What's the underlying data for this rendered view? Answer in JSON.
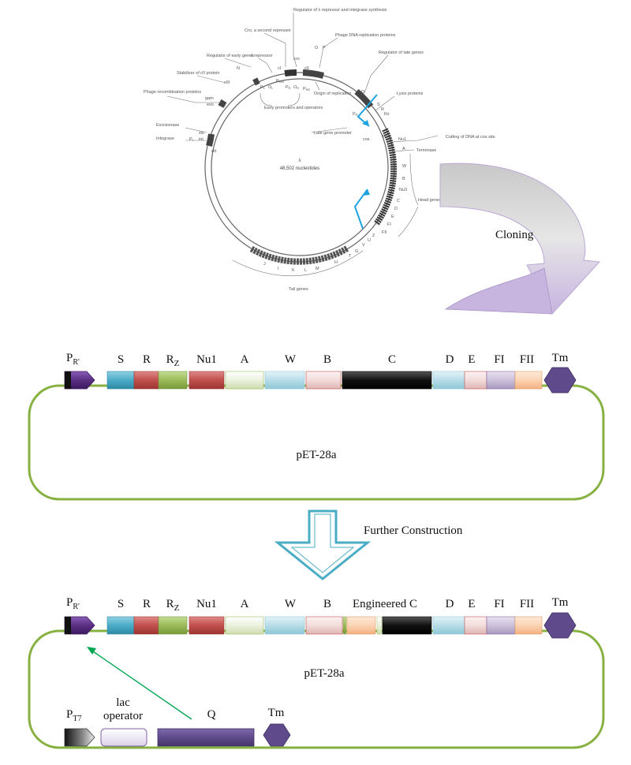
{
  "lambda_map": {
    "center_name": "λ",
    "center_size": "48,502 nucleotides",
    "labels": {
      "regulator_repressor": "Regulator of λ repressor and integrase synthesis",
      "cro": "Cro, a second repressor",
      "phage_dna_rep": "Phage DNA replication proteins",
      "lambda_repressor": "λ repressor",
      "regulator_early": "Regulator of early genes",
      "regulator_late": "Regulator of late genes",
      "stabilizer": "Stabilizer of cII protein",
      "phage_recomb": "Phage recombination proteins",
      "lysis": "Lysis proteins",
      "origin": "Origin of replication",
      "early_promoters": "Early promoters and operators",
      "late_promoter": "Late gene promoter",
      "cutting": "Cutting of DNA at cos site",
      "terminase": "Terminase",
      "head": "Head genes",
      "tail": "Tail genes",
      "excisionase": "Excisionase",
      "integrase": "Integrase"
    },
    "genes": {
      "cIII": "cIII",
      "N": "N",
      "cI": "cI",
      "cro": "cro",
      "cII": "cII",
      "O": "O",
      "P": "P",
      "Q": "Q",
      "S": "S",
      "R": "R",
      "Rz": "Rz",
      "Nu1": "Nu1",
      "A": "A",
      "W": "W",
      "B": "B",
      "C": "C",
      "Nu3": "Nu3",
      "D": "D",
      "E": "E",
      "FI": "FI",
      "FII": "FII",
      "Z": "Z",
      "U": "U",
      "V": "V",
      "G": "G",
      "T": "T",
      "H": "H",
      "M": "M",
      "L": "L",
      "K": "K",
      "I": "I",
      "J": "J",
      "int": "int",
      "xis": "xis",
      "att": "att",
      "red": "red",
      "gam": "gam",
      "bet": "bet",
      "exo": "exo",
      "PL": "P",
      "PL_sub": "L",
      "OL": "O",
      "OL_sub": "L",
      "PR_text": "P",
      "PR_sub": "R",
      "OR": "O",
      "OR_sub": "R",
      "PRE": "P",
      "PRE_sub": "RE",
      "PRM": "P",
      "PRM_sub": "RM",
      "PRp": "P",
      "PRp_sub": "R'",
      "PI": "P",
      "PI_sub": "I",
      "tR": "t",
      "tR_sub": "R'",
      "cos": "cos"
    }
  },
  "cloning_label": "Cloning",
  "further_label": "Further Construction",
  "construct1": {
    "promoter": "P",
    "promoter_sub": "R'",
    "genes": [
      "S",
      "R",
      "R",
      "Nu1",
      "A",
      "W",
      "B",
      "C",
      "D",
      "E",
      "FI",
      "FII"
    ],
    "rz_sub": "Z",
    "terminator": "Tm",
    "plasmid": "pET-28a"
  },
  "construct2": {
    "promoter": "P",
    "promoter_sub": "R'",
    "genes": [
      "S",
      "R",
      "R",
      "Nu1",
      "A",
      "W",
      "B",
      "Engineered C",
      "D",
      "E",
      "FI",
      "FII"
    ],
    "rz_sub": "Z",
    "terminator": "Tm",
    "plasmid": "pET-28a",
    "t7": "P",
    "t7_sub": "T7",
    "lac1": "lac",
    "lac2": "operator",
    "q": "Q",
    "tm2": "Tm"
  },
  "colors": {
    "plasmid": "#86b140",
    "promoter": "#5a2f83",
    "S": "#4bacc6",
    "R": "#c0504d",
    "Rz": "#9bbb59",
    "Nu1": "#c0504d",
    "A": "#ebf1de",
    "W": "#b7dde8",
    "B": "#f2dcdb",
    "C": "#000000",
    "D": "#b7dde8",
    "E": "#f2dcdb",
    "FI": "#ccc1da",
    "FII": "#fbd4b4",
    "Tm": "#5f4b8b",
    "Q": "#5f4b8b",
    "arrow_cloning": "#c9b8de",
    "arrow_further": "#4bacc6",
    "green": "#00a651"
  }
}
